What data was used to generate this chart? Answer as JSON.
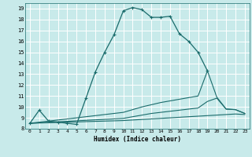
{
  "title": "",
  "xlabel": "Humidex (Indice chaleur)",
  "bg_color": "#c8eaea",
  "line_color": "#1a6b6b",
  "grid_color": "#ffffff",
  "xlim": [
    -0.5,
    23.5
  ],
  "ylim": [
    8,
    19.5
  ],
  "xticks": [
    0,
    1,
    2,
    3,
    4,
    5,
    6,
    7,
    8,
    9,
    10,
    11,
    12,
    13,
    14,
    15,
    16,
    17,
    18,
    19,
    20,
    21,
    22,
    23
  ],
  "yticks": [
    8,
    9,
    10,
    11,
    12,
    13,
    14,
    15,
    16,
    17,
    18,
    19
  ],
  "line1_x": [
    0,
    1,
    2,
    3,
    4,
    5,
    6,
    7,
    8,
    9,
    10,
    11,
    12,
    13,
    14,
    15,
    16,
    17,
    18,
    19
  ],
  "line1_y": [
    8.5,
    9.7,
    8.7,
    8.6,
    8.5,
    8.4,
    10.8,
    13.2,
    15.0,
    16.6,
    18.8,
    19.1,
    18.9,
    18.2,
    18.2,
    18.3,
    16.7,
    16.0,
    15.0,
    13.3
  ],
  "line2_x": [
    0,
    10,
    11,
    12,
    13,
    14,
    15,
    16,
    17,
    18,
    19,
    20,
    21,
    22,
    23
  ],
  "line2_y": [
    8.5,
    9.5,
    9.75,
    10.0,
    10.2,
    10.4,
    10.55,
    10.7,
    10.85,
    11.0,
    13.3,
    10.9,
    9.8,
    9.75,
    9.4
  ],
  "line3_x": [
    0,
    10,
    11,
    12,
    13,
    14,
    15,
    16,
    17,
    18,
    19,
    20,
    21,
    22,
    23
  ],
  "line3_y": [
    8.5,
    8.95,
    9.1,
    9.25,
    9.4,
    9.5,
    9.6,
    9.7,
    9.8,
    9.9,
    10.5,
    10.8,
    9.8,
    9.75,
    9.4
  ],
  "line4_x": [
    0,
    10,
    11,
    12,
    13,
    14,
    15,
    16,
    17,
    18,
    19,
    20,
    21,
    22,
    23
  ],
  "line4_y": [
    8.5,
    8.75,
    8.8,
    8.85,
    8.9,
    8.95,
    9.0,
    9.05,
    9.1,
    9.15,
    9.2,
    9.25,
    9.3,
    9.35,
    9.3
  ]
}
